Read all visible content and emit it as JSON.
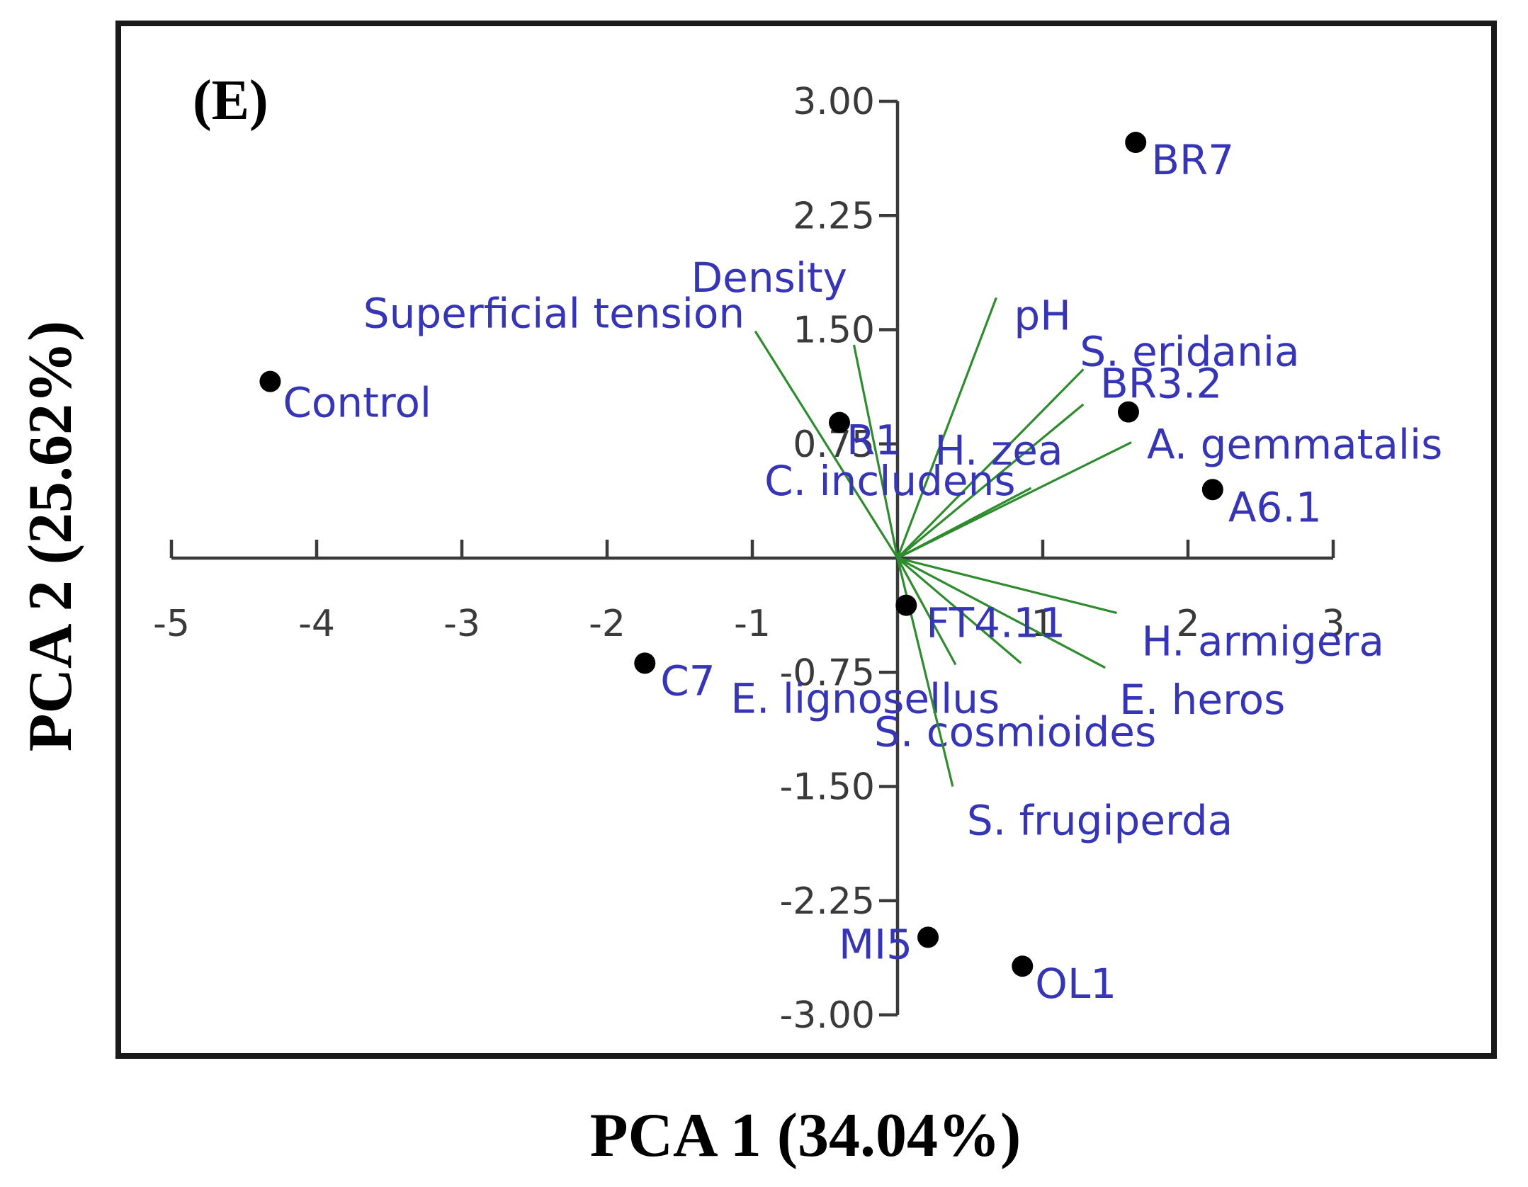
{
  "chart_data": {
    "type": "scatter",
    "subtype": "pca-biplot",
    "panel_label": "(E)",
    "xlabel": "PCA 1 (34.04%)",
    "ylabel": "PCA 2 (25.62%)",
    "xlim": [
      -5,
      3
    ],
    "ylim": [
      -3,
      3
    ],
    "x_ticks": [
      {
        "value": -5,
        "label": "-5"
      },
      {
        "value": -4,
        "label": "-4"
      },
      {
        "value": -3,
        "label": "-3"
      },
      {
        "value": -2,
        "label": "-2"
      },
      {
        "value": -1,
        "label": "-1"
      },
      {
        "value": 1,
        "label": "1"
      },
      {
        "value": 2,
        "label": "2"
      },
      {
        "value": 3,
        "label": "3"
      }
    ],
    "y_ticks": [
      {
        "value": 3.0,
        "label": "3.00"
      },
      {
        "value": 2.25,
        "label": "2.25"
      },
      {
        "value": 1.5,
        "label": "1.50"
      },
      {
        "value": 0.75,
        "label": "0.75"
      },
      {
        "value": -0.75,
        "label": "-0.75"
      },
      {
        "value": -1.5,
        "label": "-1.50"
      },
      {
        "value": -2.25,
        "label": "-2.25"
      },
      {
        "value": -3.0,
        "label": "-3.00"
      }
    ],
    "points": [
      {
        "label": "BR7",
        "x": 1.64,
        "y": 2.73
      },
      {
        "label": "Control",
        "x": -4.32,
        "y": 1.16
      },
      {
        "label": "R1",
        "x": -0.4,
        "y": 0.89
      },
      {
        "label": "BR3.2",
        "x": 1.59,
        "y": 0.96
      },
      {
        "label": "A6.1",
        "x": 2.17,
        "y": 0.45
      },
      {
        "label": "FT4.11",
        "x": 0.06,
        "y": -0.31
      },
      {
        "label": "C7",
        "x": -1.74,
        "y": -0.69
      },
      {
        "label": "MI5",
        "x": 0.21,
        "y": -2.49
      },
      {
        "label": "OL1",
        "x": 0.86,
        "y": -2.68
      }
    ],
    "vectors": [
      {
        "label": "Superficial tension",
        "x": -0.98,
        "y": 1.49
      },
      {
        "label": "Density",
        "x": -0.3,
        "y": 1.4
      },
      {
        "label": "pH",
        "x": 0.68,
        "y": 1.71
      },
      {
        "label": "S. eridania",
        "x": 1.28,
        "y": 1.24
      },
      {
        "label": "H. zea",
        "x": 1.28,
        "y": 1.01
      },
      {
        "label": "A. gemmatalis",
        "x": 1.61,
        "y": 0.76
      },
      {
        "label": "C. includens",
        "x": 0.92,
        "y": 0.46
      },
      {
        "label": "H. armigera",
        "x": 1.51,
        "y": -0.36
      },
      {
        "label": "E. heros",
        "x": 1.43,
        "y": -0.72
      },
      {
        "label": "E. lignosellus",
        "x": 0.85,
        "y": -0.69
      },
      {
        "label": "S. cosmioides",
        "x": 0.4,
        "y": -0.7
      },
      {
        "label": "S. frugiperda",
        "x": 0.38,
        "y": -1.5
      }
    ],
    "vector_labels": [
      "Superficial tension",
      "Density",
      "pH",
      "S. eridania",
      "H. zea",
      "A. gemmatalis",
      "C. includens",
      "H. armigera",
      "E. heros",
      "E. lignosellus",
      "S. cosmioides",
      "S. frugiperda"
    ]
  }
}
